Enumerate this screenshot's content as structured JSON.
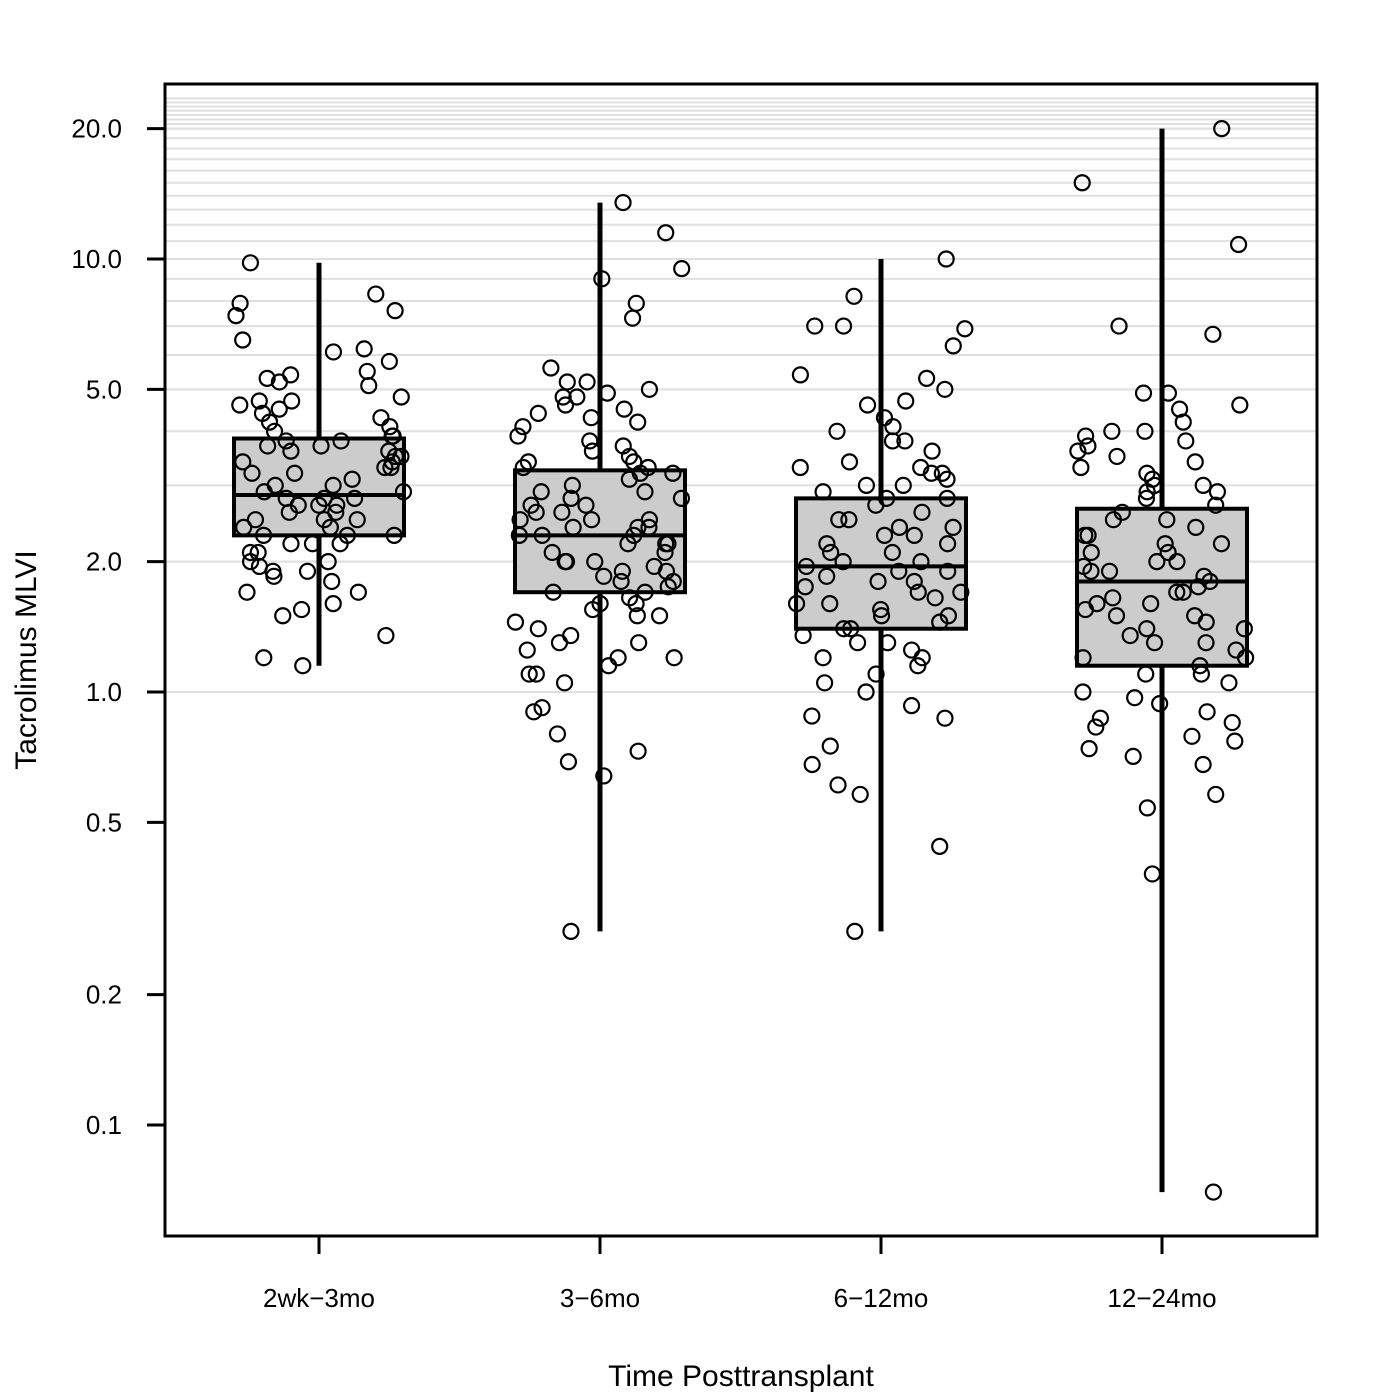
{
  "chart_data": {
    "type": "boxplot",
    "xlabel": "Time Posttransplant",
    "ylabel": "Tacrolimus MLVI",
    "yscale": "log",
    "ylim": [
      0.05,
      25
    ],
    "y_ticks": [
      0.1,
      0.2,
      0.5,
      1.0,
      2.0,
      5.0,
      10.0,
      20.0
    ],
    "y_tick_labels": [
      "0.1",
      "0.2",
      "0.5",
      "1.0",
      "2.0",
      "5.0",
      "10.0",
      "20.0"
    ],
    "grid": "light horizontal lines at log-spaced minor ticks",
    "categories": [
      "2wk−3mo",
      "3−6mo",
      "6−12mo",
      "12−24mo"
    ],
    "boxes": [
      {
        "category": "2wk−3mo",
        "whisker_low": 1.15,
        "q1": 2.3,
        "median": 2.85,
        "q3": 3.85,
        "whisker_high": 9.8
      },
      {
        "category": "3−6mo",
        "whisker_low": 0.28,
        "q1": 1.7,
        "median": 2.3,
        "q3": 3.25,
        "whisker_high": 13.5
      },
      {
        "category": "6−12mo",
        "whisker_low": 0.28,
        "q1": 1.4,
        "median": 1.95,
        "q3": 2.8,
        "whisker_high": 10.0
      },
      {
        "category": "12−24mo",
        "whisker_low": 0.07,
        "q1": 1.15,
        "median": 1.8,
        "q3": 2.65,
        "whisker_high": 20.0
      }
    ],
    "points": [
      {
        "category": "2wk−3mo",
        "values": [
          9.8,
          8.3,
          7.6,
          7.9,
          7.4,
          6.5,
          6.2,
          6.1,
          5.8,
          5.5,
          5.4,
          5.3,
          5.2,
          5.1,
          4.8,
          4.7,
          4.7,
          4.6,
          4.5,
          4.4,
          4.3,
          4.2,
          4.1,
          4.0,
          3.9,
          3.9,
          3.8,
          3.8,
          3.7,
          3.7,
          3.6,
          3.6,
          3.5,
          3.5,
          3.4,
          3.4,
          3.3,
          3.3,
          3.2,
          3.2,
          3.1,
          3.0,
          3.0,
          2.9,
          2.9,
          2.8,
          2.8,
          2.8,
          2.7,
          2.7,
          2.7,
          2.6,
          2.6,
          2.5,
          2.5,
          2.5,
          2.4,
          2.4,
          2.3,
          2.3,
          2.3,
          2.2,
          2.2,
          2.2,
          2.1,
          2.1,
          2.0,
          2.0,
          1.95,
          1.9,
          1.9,
          1.85,
          1.8,
          1.7,
          1.7,
          1.6,
          1.55,
          1.5,
          1.35,
          1.2,
          1.15
        ]
      },
      {
        "category": "3−6mo",
        "values": [
          13.5,
          11.5,
          9.5,
          9.0,
          7.9,
          7.3,
          5.6,
          5.2,
          5.2,
          5.0,
          4.9,
          4.8,
          4.8,
          4.6,
          4.5,
          4.4,
          4.3,
          4.2,
          4.1,
          3.9,
          3.8,
          3.7,
          3.6,
          3.5,
          3.4,
          3.4,
          3.3,
          3.3,
          3.2,
          3.2,
          3.1,
          3.0,
          2.9,
          2.9,
          2.8,
          2.8,
          2.7,
          2.7,
          2.6,
          2.6,
          2.5,
          2.5,
          2.5,
          2.4,
          2.4,
          2.4,
          2.3,
          2.3,
          2.3,
          2.2,
          2.2,
          2.2,
          2.1,
          2.1,
          2.0,
          2.0,
          2.0,
          1.95,
          1.9,
          1.9,
          1.85,
          1.8,
          1.8,
          1.75,
          1.7,
          1.7,
          1.65,
          1.6,
          1.6,
          1.55,
          1.5,
          1.5,
          1.45,
          1.4,
          1.35,
          1.3,
          1.3,
          1.25,
          1.2,
          1.2,
          1.15,
          1.1,
          1.1,
          1.05,
          0.92,
          0.9,
          0.8,
          0.73,
          0.69,
          0.64,
          0.28
        ]
      },
      {
        "category": "6−12mo",
        "values": [
          10.0,
          8.2,
          7.0,
          7.0,
          6.9,
          6.3,
          5.4,
          5.3,
          5.0,
          4.7,
          4.6,
          4.3,
          4.1,
          4.0,
          3.8,
          3.8,
          3.6,
          3.4,
          3.3,
          3.3,
          3.2,
          3.2,
          3.1,
          3.0,
          3.0,
          2.9,
          2.8,
          2.8,
          2.7,
          2.6,
          2.5,
          2.5,
          2.4,
          2.4,
          2.3,
          2.3,
          2.2,
          2.2,
          2.1,
          2.1,
          2.0,
          2.0,
          1.95,
          1.9,
          1.9,
          1.85,
          1.8,
          1.8,
          1.75,
          1.7,
          1.7,
          1.65,
          1.6,
          1.6,
          1.55,
          1.5,
          1.5,
          1.45,
          1.4,
          1.4,
          1.35,
          1.3,
          1.3,
          1.25,
          1.2,
          1.2,
          1.15,
          1.1,
          1.05,
          1.0,
          0.93,
          0.88,
          0.87,
          0.75,
          0.68,
          0.61,
          0.58,
          0.44,
          0.28
        ]
      },
      {
        "category": "12−24mo",
        "values": [
          20.0,
          15.0,
          10.8,
          7.0,
          6.7,
          4.9,
          4.9,
          4.6,
          4.5,
          4.2,
          4.0,
          4.0,
          3.9,
          3.8,
          3.7,
          3.6,
          3.5,
          3.4,
          3.3,
          3.2,
          3.1,
          3.0,
          3.0,
          2.9,
          2.9,
          2.8,
          2.7,
          2.6,
          2.5,
          2.5,
          2.4,
          2.3,
          2.3,
          2.2,
          2.2,
          2.1,
          2.1,
          2.0,
          2.0,
          1.95,
          1.9,
          1.9,
          1.85,
          1.8,
          1.75,
          1.7,
          1.7,
          1.65,
          1.6,
          1.6,
          1.55,
          1.5,
          1.5,
          1.45,
          1.4,
          1.4,
          1.35,
          1.3,
          1.3,
          1.25,
          1.2,
          1.2,
          1.15,
          1.1,
          1.1,
          1.05,
          1.0,
          0.97,
          0.94,
          0.9,
          0.87,
          0.85,
          0.83,
          0.79,
          0.77,
          0.74,
          0.71,
          0.68,
          0.58,
          0.54,
          0.38,
          0.07
        ]
      }
    ],
    "colors": {
      "box_fill": "#cccccc",
      "grid": "#e0e0e0",
      "stroke": "#000000"
    }
  }
}
